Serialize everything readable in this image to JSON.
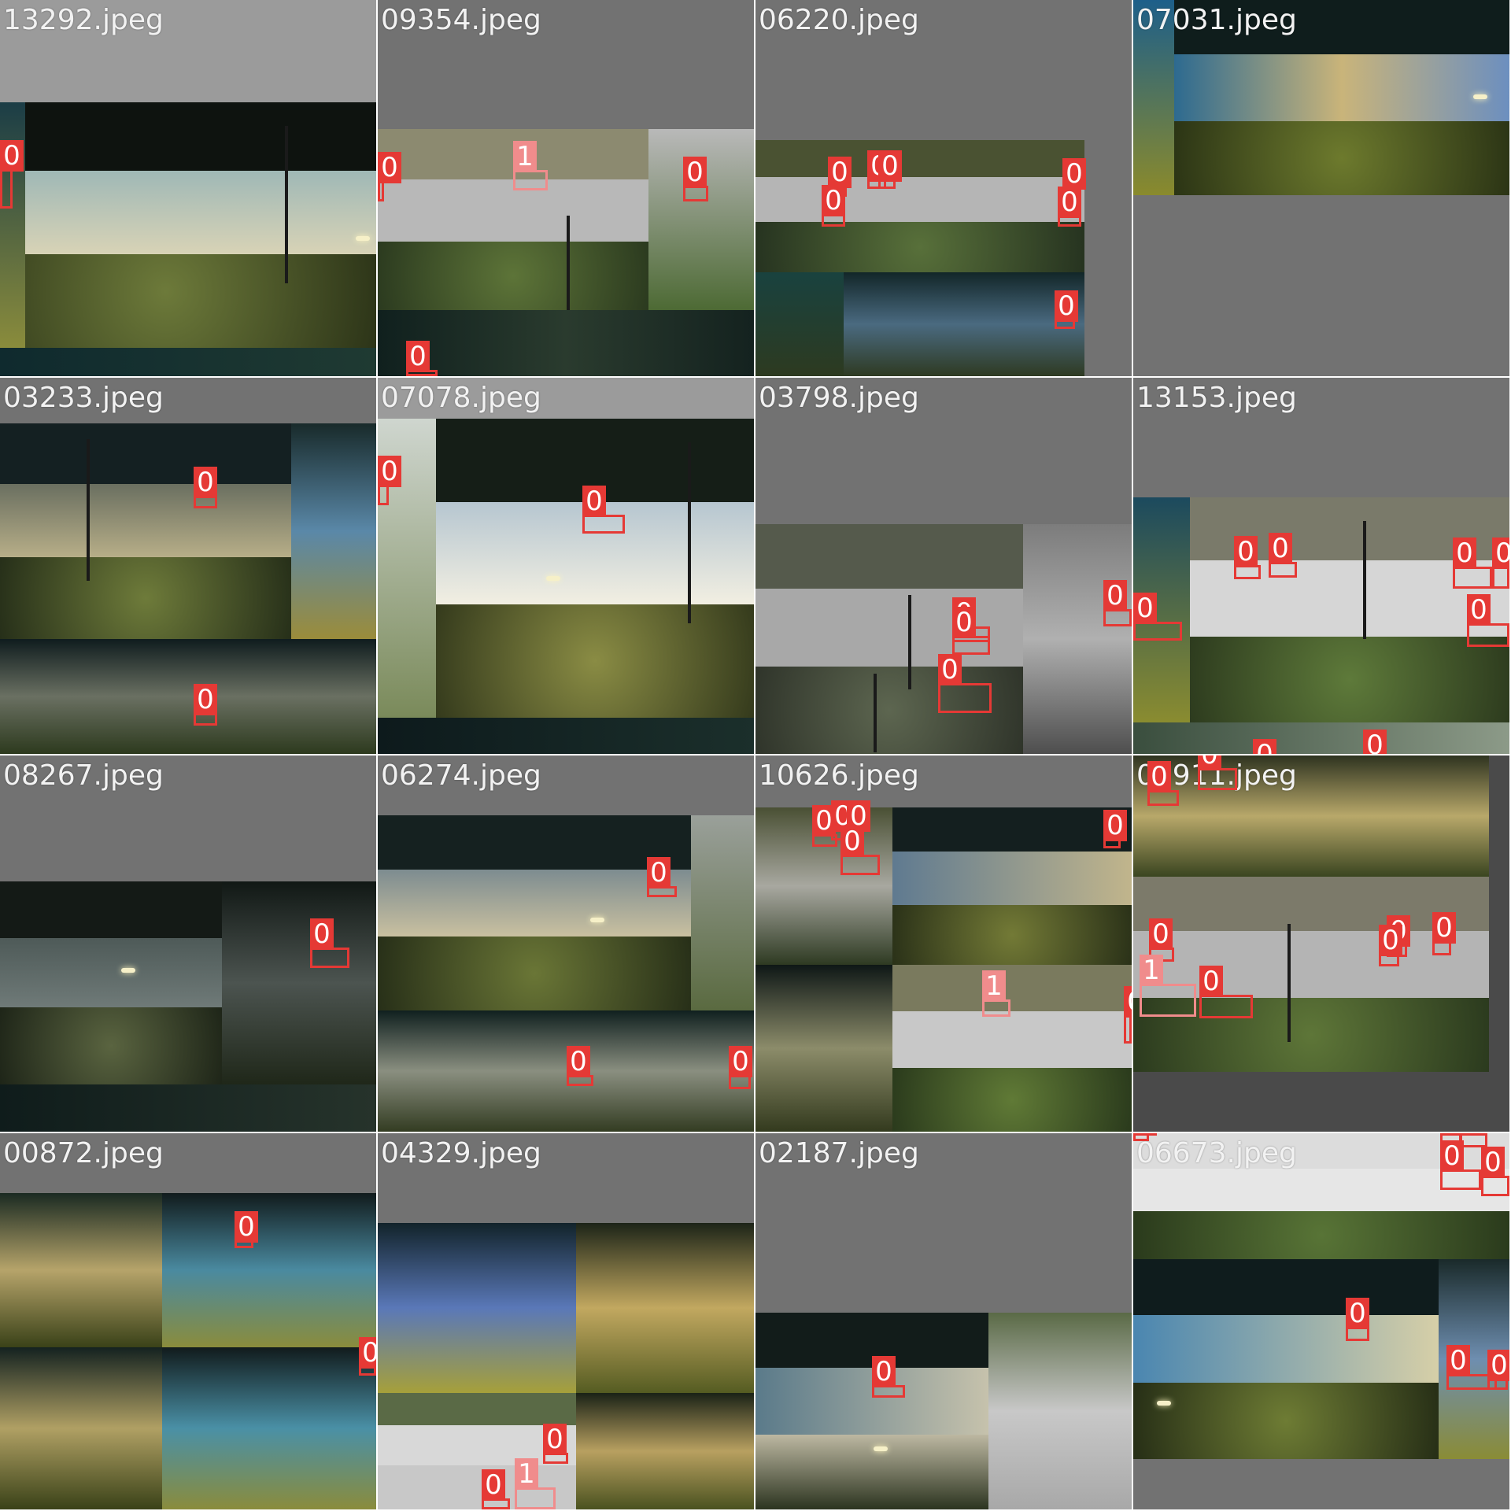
{
  "colors": {
    "class_0": "#e53935",
    "class_1": "#f08c8c",
    "padding_gray": "#727272",
    "caption_text": "#f2f2f2"
  },
  "tiles": [
    {
      "filename": "13292.jpeg",
      "labels": [
        "0"
      ]
    },
    {
      "filename": "09354.jpeg",
      "labels": [
        "0",
        "1",
        "0",
        "0"
      ]
    },
    {
      "filename": "06220.jpeg",
      "labels": [
        "0",
        "0",
        "0",
        "0",
        "0",
        "0",
        "0"
      ]
    },
    {
      "filename": "07031.jpeg",
      "labels": []
    },
    {
      "filename": "03233.jpeg",
      "labels": [
        "0",
        "0"
      ]
    },
    {
      "filename": "07078.jpeg",
      "labels": [
        "0",
        "0"
      ]
    },
    {
      "filename": "03798.jpeg",
      "labels": [
        "0",
        "0",
        "0",
        "0"
      ]
    },
    {
      "filename": "13153.jpeg",
      "labels": [
        "0",
        "0",
        "0",
        "0",
        "0",
        "0",
        "0",
        "0"
      ]
    },
    {
      "filename": "08267.jpeg",
      "labels": [
        "0"
      ]
    },
    {
      "filename": "06274.jpeg",
      "labels": [
        "0",
        "0",
        "0"
      ]
    },
    {
      "filename": "10626.jpeg",
      "labels": [
        "0",
        "0",
        "0",
        "0",
        "0",
        "1",
        "0"
      ]
    },
    {
      "filename": "05911.jpeg",
      "labels": [
        "0",
        "0",
        "0",
        "0",
        "0",
        "0",
        "1",
        "0"
      ]
    },
    {
      "filename": "00872.jpeg",
      "labels": [
        "0",
        "0"
      ]
    },
    {
      "filename": "04329.jpeg",
      "labels": [
        "0",
        "0",
        "1"
      ]
    },
    {
      "filename": "02187.jpeg",
      "labels": [
        "0"
      ]
    },
    {
      "filename": "06673.jpeg",
      "labels": [
        "0",
        "0",
        "0",
        "0",
        "0",
        "0",
        "0",
        "0"
      ]
    }
  ]
}
